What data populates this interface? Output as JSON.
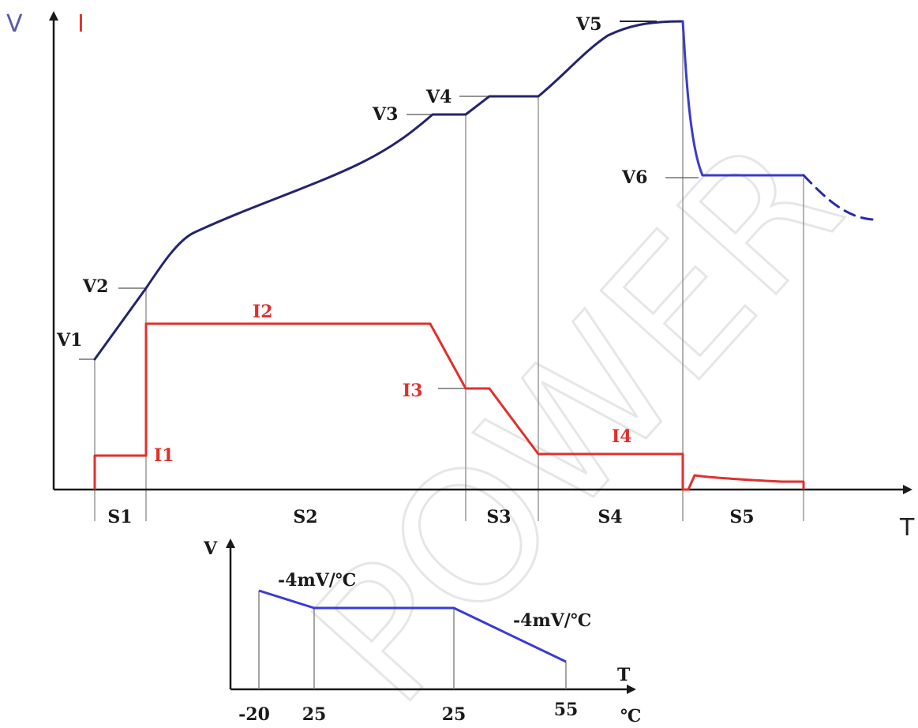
{
  "watermark": "POWER",
  "colors": {
    "voltage": "#2a2a7a",
    "current": "#e0302c",
    "axis": "#1a1a1a",
    "guide": "#888888",
    "inset_line": "#3b3bd6",
    "watermark": "#ececec"
  },
  "chart_data": [
    {
      "type": "line",
      "title": "",
      "y_axis_label_v": "V",
      "y_axis_label_i": "I",
      "x_axis_label": "T",
      "stages": [
        "S1",
        "S2",
        "S3",
        "S4",
        "S5"
      ],
      "voltage_levels": [
        "V1",
        "V2",
        "V3",
        "V4",
        "V5",
        "V6"
      ],
      "current_levels": [
        "I1",
        "I2",
        "I3",
        "I4"
      ],
      "series": [
        {
          "name": "V",
          "description": "voltage rises V1→V2 (S1), V2→V3 (S2), V3→V4 (S3), V4→V5 (S4), drops to V6 (S5), then continues dashed"
        },
        {
          "name": "I",
          "description": "current I1 (S1), I2 then ramps to I3 (S2), I3 ramps to I4 (S3), I4 (S4), tapers near zero (S5)"
        }
      ],
      "grid": false
    },
    {
      "type": "line",
      "y_axis_label": "V",
      "x_axis_label": "T",
      "x_unit": "℃",
      "x_ticks": [
        "-20",
        "25",
        "25",
        "55"
      ],
      "annotations": [
        "-4mV/℃",
        "-4mV/℃"
      ],
      "series": [
        {
          "x": [
            -20,
            25,
            25,
            55
          ],
          "y": [
            1.0,
            0.0,
            0.0,
            -1.0
          ]
        }
      ],
      "grid": false
    }
  ]
}
